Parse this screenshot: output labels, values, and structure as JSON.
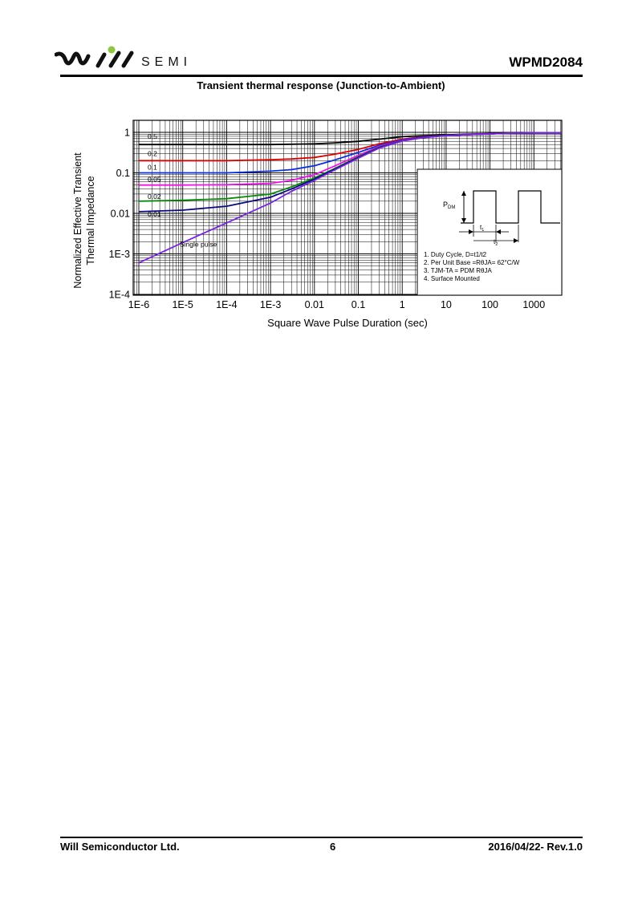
{
  "header": {
    "brand_word": "SEMI",
    "doc_name": "WPMD2084"
  },
  "chart_data": {
    "type": "line",
    "title": "Transient thermal response (Junction-to-Ambient)",
    "xlabel": "Square Wave Pulse Duration (sec)",
    "ylabel_line1": "Normalized Effective Transient",
    "ylabel_line2": "Thermal Impedance",
    "x_scale": "log",
    "y_scale": "log",
    "xlim": [
      1e-06,
      5000
    ],
    "ylim": [
      0.0001,
      1.4
    ],
    "grid": true,
    "x_ticks": [
      {
        "value": 1e-06,
        "label": "1E-6"
      },
      {
        "value": 1e-05,
        "label": "1E-5"
      },
      {
        "value": 0.0001,
        "label": "1E-4"
      },
      {
        "value": 0.001,
        "label": "1E-3"
      },
      {
        "value": 0.01,
        "label": "0.01"
      },
      {
        "value": 0.1,
        "label": "0.1"
      },
      {
        "value": 1,
        "label": "1"
      },
      {
        "value": 10,
        "label": "10"
      },
      {
        "value": 100,
        "label": "100"
      },
      {
        "value": 1000,
        "label": "1000"
      }
    ],
    "y_ticks": [
      {
        "value": 1,
        "label": "1"
      },
      {
        "value": 0.1,
        "label": "0.1"
      },
      {
        "value": 0.01,
        "label": "0.01"
      },
      {
        "value": 0.001,
        "label": "1E-3"
      },
      {
        "value": 0.0001,
        "label": "1E-4"
      }
    ],
    "x": [
      1e-06,
      1e-05,
      0.0001,
      0.001,
      0.003,
      0.01,
      0.03,
      0.1,
      0.3,
      1,
      3,
      10,
      30,
      100,
      300,
      1000,
      5000
    ],
    "series": [
      {
        "name": "0.5",
        "color": "#000000",
        "values": [
          0.5,
          0.5,
          0.5,
          0.5,
          0.51,
          0.52,
          0.55,
          0.6,
          0.68,
          0.78,
          0.83,
          0.87,
          0.9,
          0.93,
          0.95,
          0.97,
          0.97
        ]
      },
      {
        "name": "0.2",
        "color": "#e00000",
        "values": [
          0.2,
          0.2,
          0.2,
          0.21,
          0.22,
          0.24,
          0.29,
          0.38,
          0.52,
          0.68,
          0.78,
          0.84,
          0.88,
          0.92,
          0.95,
          0.97,
          0.97
        ]
      },
      {
        "name": "0.1",
        "color": "#0a2ee0",
        "values": [
          0.1,
          0.1,
          0.1,
          0.11,
          0.12,
          0.15,
          0.21,
          0.32,
          0.48,
          0.65,
          0.77,
          0.84,
          0.88,
          0.92,
          0.95,
          0.97,
          0.97
        ]
      },
      {
        "name": "0.05",
        "color": "#ee10ee",
        "values": [
          0.05,
          0.05,
          0.051,
          0.055,
          0.065,
          0.09,
          0.15,
          0.27,
          0.45,
          0.63,
          0.76,
          0.84,
          0.88,
          0.92,
          0.95,
          0.97,
          0.97
        ]
      },
      {
        "name": "0.02",
        "color": "#0a8a0a",
        "values": [
          0.02,
          0.021,
          0.023,
          0.03,
          0.045,
          0.075,
          0.13,
          0.25,
          0.43,
          0.62,
          0.75,
          0.84,
          0.88,
          0.92,
          0.95,
          0.97,
          0.97
        ]
      },
      {
        "name": "0.01",
        "color": "#0a0a80",
        "values": [
          0.011,
          0.012,
          0.015,
          0.025,
          0.04,
          0.07,
          0.125,
          0.24,
          0.42,
          0.62,
          0.75,
          0.84,
          0.88,
          0.92,
          0.95,
          0.97,
          0.97
        ]
      },
      {
        "name": "Single pulse",
        "color": "#7a24e0",
        "values": [
          0.0006,
          0.0019,
          0.0058,
          0.018,
          0.035,
          0.065,
          0.12,
          0.23,
          0.41,
          0.61,
          0.74,
          0.83,
          0.88,
          0.92,
          0.95,
          0.97,
          0.97
        ]
      }
    ],
    "series_labels": [
      {
        "series": "0.5",
        "text": "0.5"
      },
      {
        "series": "0.2",
        "text": "0.2"
      },
      {
        "series": "0.1",
        "text": "0.1"
      },
      {
        "series": "0.05",
        "text": "0.05"
      },
      {
        "series": "0.02",
        "text": "0.02"
      },
      {
        "series": "0.01",
        "text": "0.01"
      },
      {
        "series": "Single pulse",
        "text": "Single pulse"
      }
    ],
    "inset": {
      "pdm_label": "P",
      "pdm_sub": "DM",
      "t1_label": "t",
      "t1_sub": "1",
      "t2_label": "t",
      "t2_sub": "2",
      "notes": [
        "1. Duty Cycle, D=t1/t2",
        "2. Per Unit Base =RθJA= 62°C/W",
        "3. TJM-TA = PDM RθJA",
        "4. Surface Mounted"
      ]
    }
  },
  "footer": {
    "company": "Will Semiconductor Ltd.",
    "page": "6",
    "revision": "2016/04/22- Rev.1.0"
  },
  "colors": {
    "logo_dot": "#8dc63f",
    "text": "#000000"
  }
}
